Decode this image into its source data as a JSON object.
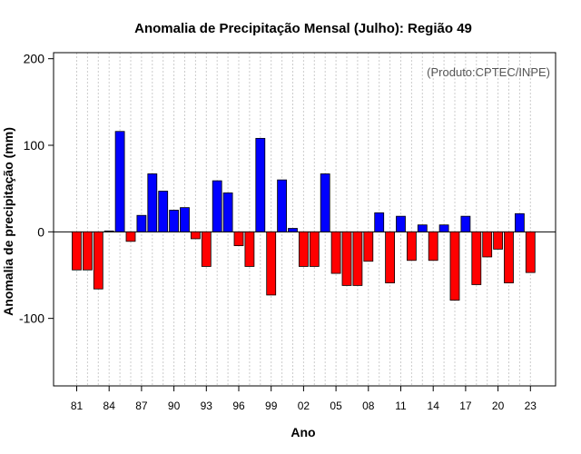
{
  "chart_data": {
    "type": "bar",
    "title": "Anomalia de Precipitação Mensal (Julho): Região 49",
    "xlabel": "Ano",
    "ylabel": "Anomalia de precipitação (mm)",
    "credit": "(Produto:CPTEC/INPE)",
    "ylim": [
      -178,
      207
    ],
    "y_ticks": [
      -100,
      0,
      100,
      200
    ],
    "x_tick_labels": [
      "81",
      "84",
      "87",
      "90",
      "93",
      "96",
      "99",
      "02",
      "05",
      "08",
      "11",
      "14",
      "17",
      "20",
      "23"
    ],
    "grid": true,
    "colors": {
      "positive": "#0000ff",
      "negative": "#ff0000",
      "grid": "#cccccc"
    },
    "categories": [
      "1981",
      "1982",
      "1983",
      "1984",
      "1985",
      "1986",
      "1987",
      "1988",
      "1989",
      "1990",
      "1991",
      "1992",
      "1993",
      "1994",
      "1995",
      "1996",
      "1997",
      "1998",
      "1999",
      "2000",
      "2001",
      "2002",
      "2003",
      "2004",
      "2005",
      "2006",
      "2007",
      "2008",
      "2009",
      "2010",
      "2011",
      "2012",
      "2013",
      "2014",
      "2015",
      "2016",
      "2017",
      "2018",
      "2019",
      "2020",
      "2021",
      "2022",
      "2023"
    ],
    "values": [
      -44,
      -44,
      -66,
      1,
      116,
      -11,
      19,
      67,
      47,
      25,
      28,
      -8,
      -40,
      59,
      45,
      -16,
      -40,
      108,
      -73,
      60,
      4,
      -40,
      -40,
      67,
      -48,
      -62,
      -62,
      -34,
      22,
      -59,
      18,
      -33,
      8,
      -33,
      8,
      -79,
      18,
      -61,
      -29,
      -20,
      -59,
      21,
      -47
    ]
  }
}
